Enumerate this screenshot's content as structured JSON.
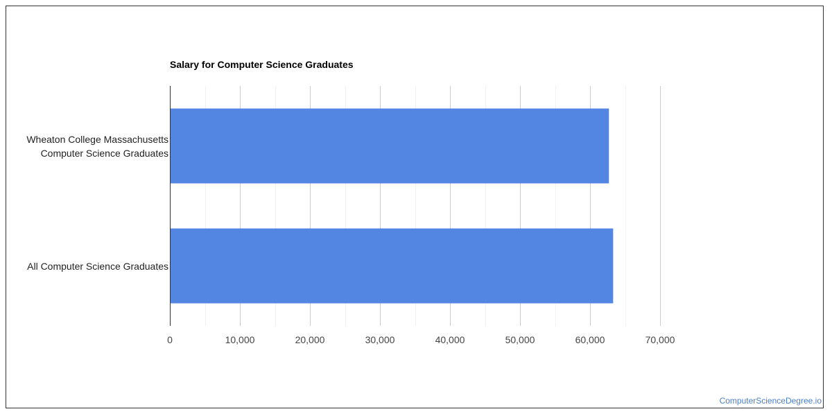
{
  "chart_data": {
    "type": "bar",
    "orientation": "horizontal",
    "title": "Salary for Computer Science Graduates",
    "xlabel": "",
    "ylabel": "",
    "categories": [
      [
        "Wheaton College Massachusetts",
        "Computer Science Graduates"
      ],
      [
        "All Computer Science Graduates"
      ]
    ],
    "values": [
      62700,
      63300
    ],
    "xlim": [
      0,
      70000
    ],
    "xticks": [
      0,
      10000,
      20000,
      30000,
      40000,
      50000,
      60000,
      70000
    ],
    "xtick_labels": [
      "0",
      "10,000",
      "20,000",
      "30,000",
      "40,000",
      "50,000",
      "60,000",
      "70,000"
    ],
    "bar_color": "#5385e3",
    "grid": true,
    "legend": "none"
  },
  "footer": {
    "link_text": "ComputerScienceDegree.io",
    "link_color": "#4a7fc8"
  }
}
